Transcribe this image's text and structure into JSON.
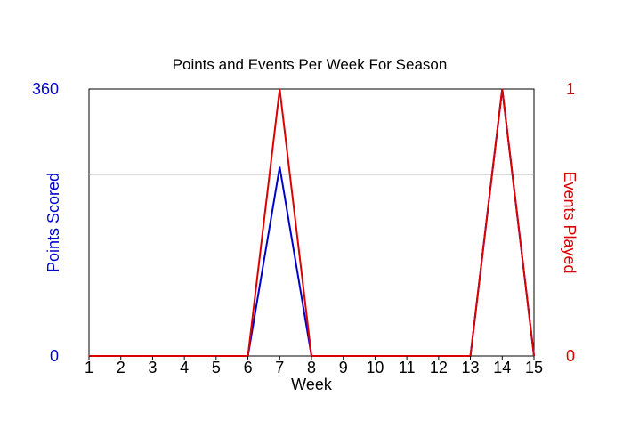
{
  "chart_data": {
    "type": "line",
    "title": "Points and Events Per Week For Season",
    "xlabel": "Week",
    "x": [
      1,
      2,
      3,
      4,
      5,
      6,
      7,
      8,
      9,
      10,
      11,
      12,
      13,
      14,
      15
    ],
    "xlim": [
      1,
      15
    ],
    "y_left": {
      "label": "Points Scored",
      "ylim": [
        0,
        360
      ],
      "ticks": [
        "0",
        "360"
      ],
      "color": "#0000cc"
    },
    "y_right": {
      "label": "Events Played",
      "ylim": [
        0,
        1
      ],
      "ticks": [
        "0",
        "1"
      ],
      "color": "#dd0000"
    },
    "series": [
      {
        "axis": "left",
        "color": "#0000cc",
        "values": [
          0,
          0,
          0,
          0,
          0,
          0,
          255,
          0,
          0,
          0,
          0,
          0,
          0,
          360,
          0
        ]
      },
      {
        "axis": "right",
        "color": "#dd0000",
        "values": [
          0,
          0,
          0,
          0,
          0,
          0,
          1,
          0,
          0,
          0,
          0,
          0,
          0,
          1,
          0
        ]
      }
    ],
    "reference_lines": [
      {
        "axis": "left",
        "value": 245,
        "color": "#999999"
      }
    ],
    "grid": false
  }
}
